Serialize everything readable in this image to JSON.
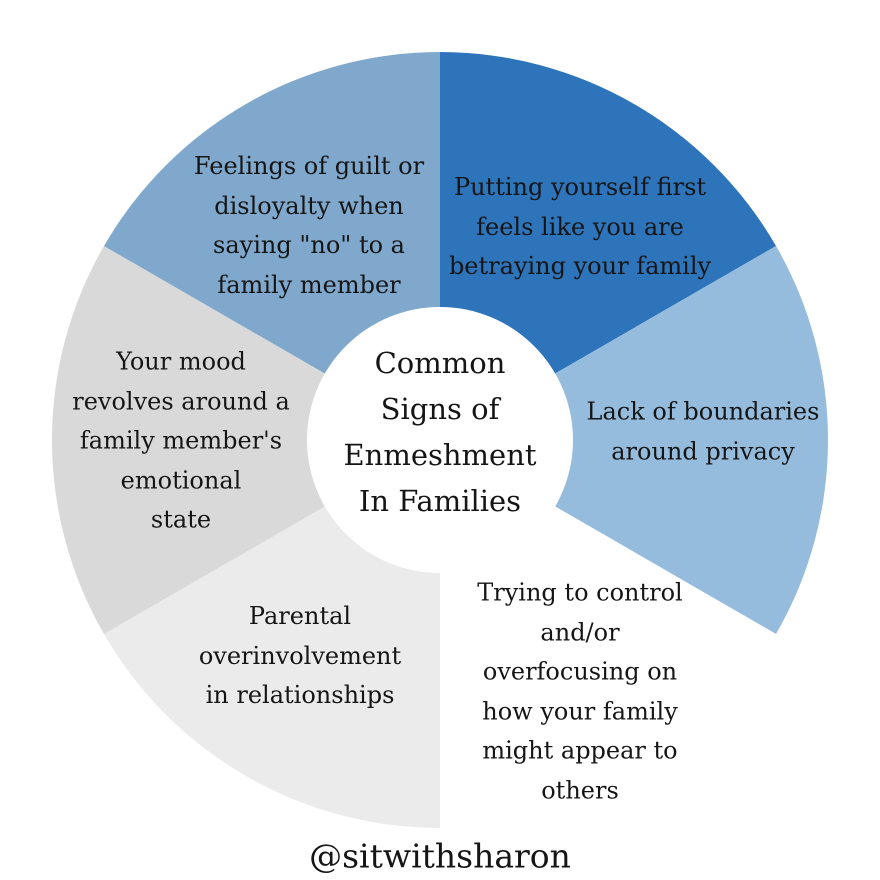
{
  "center_title": [
    "Common",
    "Signs of",
    "Enmeshment",
    "In Families"
  ],
  "segments": [
    {
      "lines": [
        "Putting yourself first",
        "feels like you are",
        "betraying your family"
      ],
      "color": "#2e74ba"
    },
    {
      "lines": [
        "Lack of boundaries",
        "around privacy"
      ],
      "color": "#96bcdd"
    },
    {
      "lines": [
        "Trying to control",
        "and/or",
        "overfocusing on",
        "how your family",
        "might appear to",
        "others"
      ],
      "color": "#ffffff"
    },
    {
      "lines": [
        "Parental",
        "overinvolvement",
        "in relationships"
      ],
      "color": "#ebebeb"
    },
    {
      "lines": [
        "Your mood",
        "revolves around a",
        "family member's",
        "emotional",
        "state"
      ],
      "color": "#d9d9d9"
    },
    {
      "lines": [
        "Feelings of guilt or",
        "disloyalty when",
        "saying \"no\" to a",
        "family member"
      ],
      "color": "#7fa8cc"
    }
  ],
  "handle": "@sitwithsharon"
}
